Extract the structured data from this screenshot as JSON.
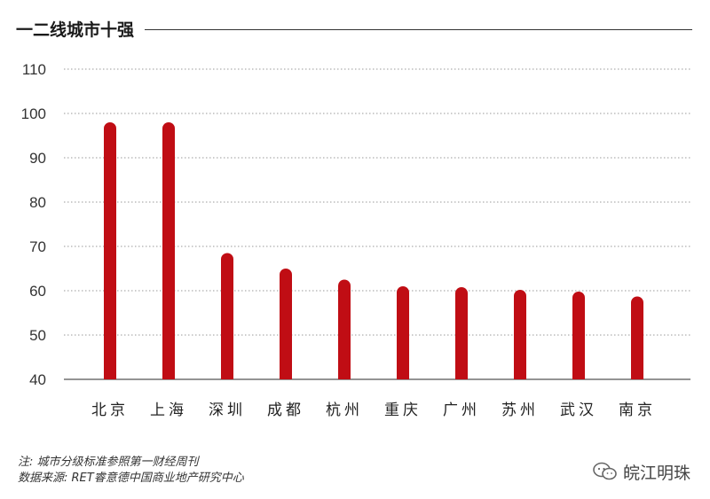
{
  "header": {
    "title": "一二线城市十强"
  },
  "chart_data": {
    "type": "bar",
    "title": "一二线城市十强",
    "categories": [
      "北京",
      "上海",
      "深圳",
      "成都",
      "杭州",
      "重庆",
      "广州",
      "苏州",
      "武汉",
      "南京"
    ],
    "values": [
      98,
      98,
      68.5,
      65,
      62.5,
      61,
      60.8,
      60.2,
      59.8,
      58.7
    ],
    "yticks": [
      "40",
      "50",
      "60",
      "70",
      "80",
      "90",
      "100",
      "110"
    ],
    "ylim": [
      40,
      110
    ],
    "grid": true,
    "bar_color": "#c00d14"
  },
  "footer": {
    "note": "注: 城市分级标准参照第一财经周刊",
    "source": "数据来源: RET睿意德中国商业地产研究中心",
    "watermark": "皖江明珠"
  }
}
